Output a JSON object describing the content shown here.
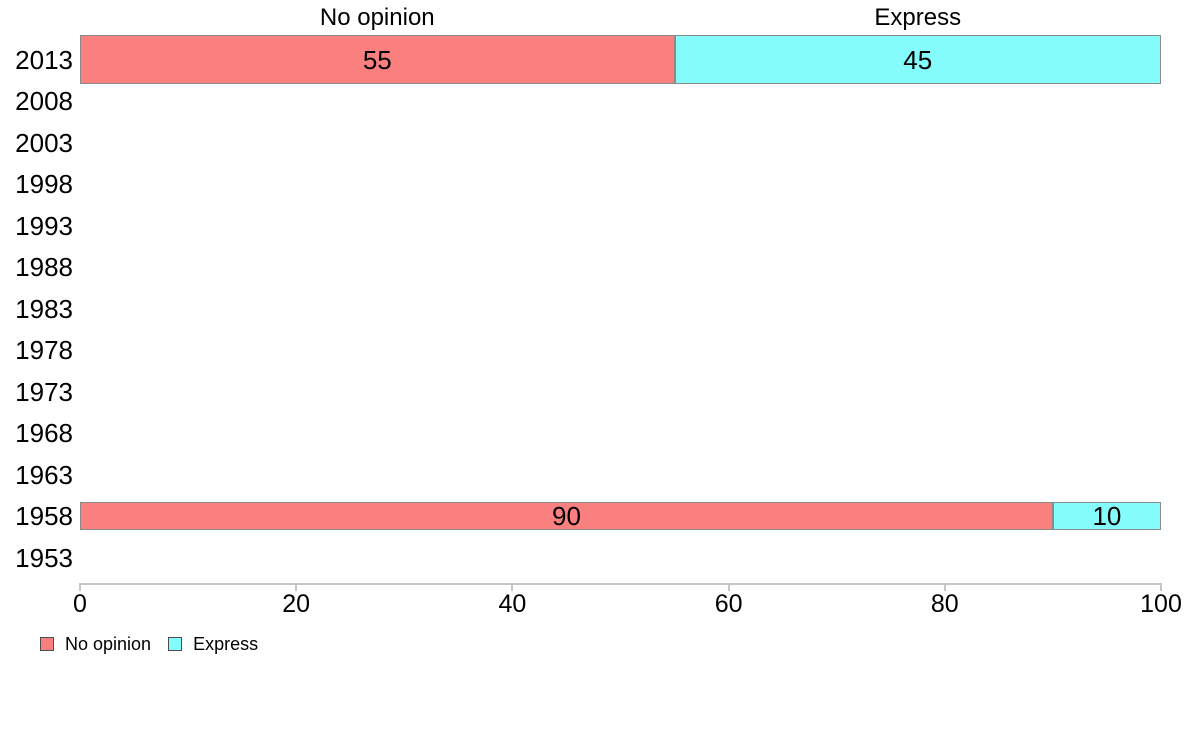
{
  "chart_data": {
    "type": "bar",
    "orientation": "horizontal",
    "stacked": true,
    "title": "",
    "column_headers": [
      "No opinion",
      "Express"
    ],
    "categories": [
      "2013",
      "2008",
      "2003",
      "1998",
      "1993",
      "1988",
      "1983",
      "1978",
      "1973",
      "1968",
      "1963",
      "1958",
      "1953"
    ],
    "series": [
      {
        "name": "No opinion",
        "color": "#FA8080",
        "values": [
          55,
          null,
          null,
          null,
          null,
          null,
          null,
          null,
          null,
          null,
          null,
          90,
          null
        ]
      },
      {
        "name": "Express",
        "color": "#85FCFC",
        "values": [
          45,
          null,
          null,
          null,
          null,
          null,
          null,
          null,
          null,
          null,
          null,
          10,
          null
        ]
      }
    ],
    "xlim": [
      0,
      100
    ],
    "x_ticks": [
      "0",
      "20",
      "40",
      "60",
      "80",
      "100"
    ],
    "grid": false,
    "legend": {
      "position": "bottom-left",
      "entries": [
        {
          "label": "No opinion",
          "color": "#FA8080"
        },
        {
          "label": "Express",
          "color": "#85FCFC"
        }
      ]
    },
    "colors": {
      "bar_border": "#8a8a8a",
      "axis": "#c6c6c6",
      "text": "#000000",
      "background": "#ffffff"
    }
  }
}
